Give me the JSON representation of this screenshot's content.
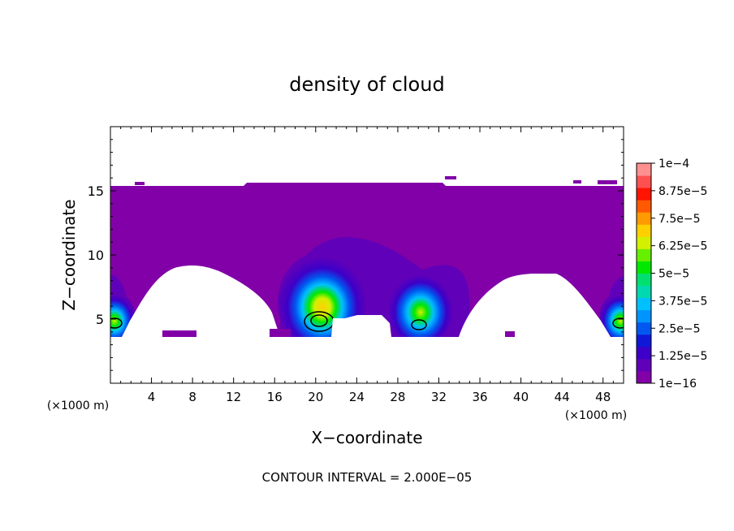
{
  "chart_data": {
    "type": "heatmap",
    "title": "density of cloud",
    "xlabel": "X−coordinate",
    "ylabel": "Z−coordinate",
    "x_unit_label": "(×1000 m)",
    "footer": "CONTOUR INTERVAL = 2.000E−05",
    "xlim": [
      0,
      50
    ],
    "ylim": [
      0,
      20
    ],
    "x_ticks": [
      4,
      8,
      12,
      16,
      20,
      24,
      28,
      32,
      36,
      40,
      44,
      48
    ],
    "y_ticks": [
      5,
      10,
      15
    ],
    "x_tick_labels": [
      "4",
      "8",
      "12",
      "16",
      "20",
      "24",
      "28",
      "32",
      "36",
      "40",
      "44",
      "48"
    ],
    "y_tick_labels": [
      "5",
      "10",
      "15"
    ],
    "colorbar": {
      "labels": [
        "1e−16",
        "1.25e−5",
        "2.5e−5",
        "3.75e−5",
        "5e−5",
        "6.25e−5",
        "7.5e−5",
        "8.75e−5",
        "1e−4"
      ],
      "colors": [
        "#8200a8",
        "#6000b8",
        "#3c00c8",
        "#1018d8",
        "#0058f0",
        "#0094ff",
        "#00c0ff",
        "#00d8b0",
        "#00e070",
        "#00e800",
        "#66f000",
        "#d2f000",
        "#ffd000",
        "#ff9a00",
        "#ff5a00",
        "#ff1400",
        "#ff5050",
        "#ff9090"
      ]
    },
    "cloud": {
      "base_color": "#8200a8",
      "top_z": 15.3,
      "cores": [
        {
          "x": 0.3,
          "z": 4.7,
          "max": 6e-05
        },
        {
          "x": 20.3,
          "z": 4.9,
          "max": 8e-05
        },
        {
          "x": 30.4,
          "z": 4.6,
          "max": 6e-05
        },
        {
          "x": 49.9,
          "z": 4.7,
          "max": 6e-05
        }
      ]
    }
  }
}
